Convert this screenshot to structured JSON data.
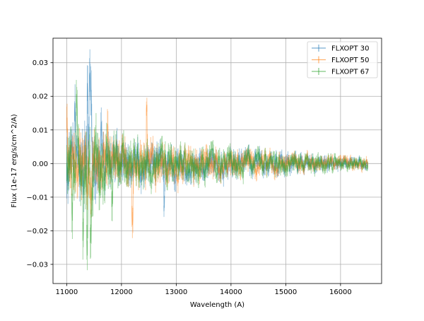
{
  "chart_data": {
    "type": "line",
    "title": "",
    "xlabel": "Wavelength (A)",
    "ylabel": "Flux (1e-17 erg/s/cm^2/A)",
    "xlim": [
      10750,
      16750
    ],
    "ylim": [
      -0.0357,
      0.0373
    ],
    "xticks": [
      11000,
      12000,
      13000,
      14000,
      15000,
      16000
    ],
    "yticks": [
      -0.03,
      -0.02,
      -0.01,
      0.0,
      0.01,
      0.02,
      0.03
    ],
    "xtick_labels": [
      "11000",
      "12000",
      "13000",
      "14000",
      "15000",
      "16000"
    ],
    "ytick_labels": [
      "−0.03",
      "−0.02",
      "−0.01",
      "0.00",
      "0.01",
      "0.02",
      "0.03"
    ],
    "grid": true,
    "legend_position": "top-right",
    "error_bars": true,
    "series": [
      {
        "name": "FLXOPT 30",
        "color": "#1f77b4",
        "amp": [
          [
            11000,
            0.012
          ],
          [
            11200,
            0.011
          ],
          [
            11400,
            0.016
          ],
          [
            11700,
            0.009
          ],
          [
            12000,
            0.008
          ],
          [
            12500,
            0.007
          ],
          [
            13000,
            0.0062
          ],
          [
            14000,
            0.0048
          ],
          [
            15000,
            0.0036
          ],
          [
            16000,
            0.0024
          ],
          [
            16500,
            0.002
          ]
        ],
        "peaks": [
          [
            11380,
            0.021
          ],
          [
            11420,
            0.0285
          ],
          [
            11440,
            0.0225
          ],
          [
            11150,
            0.016
          ],
          [
            12780,
            -0.0125
          ],
          [
            11630,
            0.012
          ]
        ]
      },
      {
        "name": "FLXOPT 50",
        "color": "#ff7f0e",
        "amp": [
          [
            11000,
            0.0115
          ],
          [
            11200,
            0.0105
          ],
          [
            11400,
            0.0115
          ],
          [
            11700,
            0.0095
          ],
          [
            12000,
            0.0082
          ],
          [
            12500,
            0.0072
          ],
          [
            13000,
            0.0063
          ],
          [
            14000,
            0.0048
          ],
          [
            15000,
            0.0036
          ],
          [
            16000,
            0.0025
          ],
          [
            16500,
            0.002
          ]
        ],
        "peaks": [
          [
            12460,
            0.0175
          ],
          [
            12200,
            -0.0175
          ],
          [
            11000,
            0.015
          ],
          [
            11750,
            0.0125
          ]
        ]
      },
      {
        "name": "FLXOPT 67",
        "color": "#2ca02c",
        "amp": [
          [
            11000,
            0.0115
          ],
          [
            11200,
            0.0125
          ],
          [
            11400,
            0.0145
          ],
          [
            11700,
            0.011
          ],
          [
            12000,
            0.0085
          ],
          [
            12500,
            0.0075
          ],
          [
            13000,
            0.0065
          ],
          [
            14000,
            0.005
          ],
          [
            15000,
            0.0038
          ],
          [
            16000,
            0.0026
          ],
          [
            16500,
            0.0021
          ]
        ],
        "peaks": [
          [
            11370,
            -0.025
          ],
          [
            11300,
            -0.021
          ],
          [
            11180,
            0.019
          ],
          [
            11100,
            -0.015
          ],
          [
            11830,
            -0.013
          ],
          [
            11440,
            -0.022
          ]
        ]
      }
    ]
  }
}
